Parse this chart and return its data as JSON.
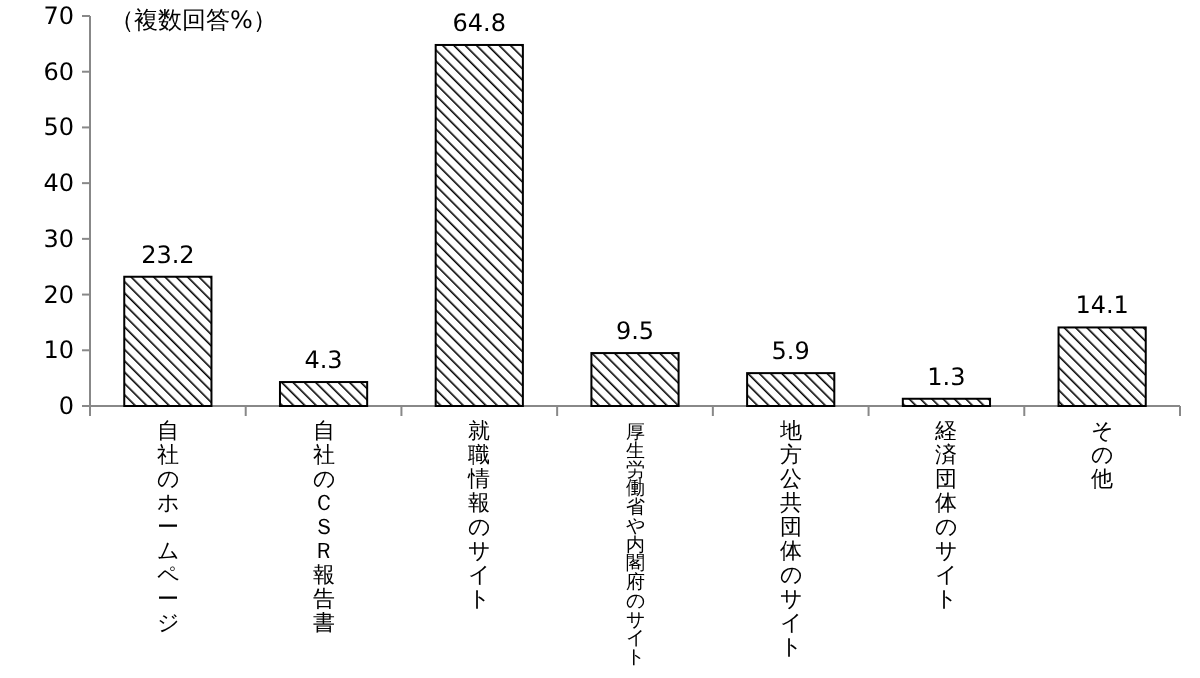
{
  "chart_data": {
    "type": "bar",
    "annotations": [
      "（複数回答%）"
    ],
    "categories": [
      "自社のホームページ",
      "自社のＣＳＲ報告書",
      "就職情報のサイト",
      "厚生労働省や内閣府のサイト",
      "地方公共団体のサイト",
      "経済団体のサイト",
      "その他"
    ],
    "values": [
      23.2,
      4.3,
      64.8,
      9.5,
      5.9,
      1.3,
      14.1
    ],
    "color": "#000000",
    "ylim": [
      0,
      70
    ],
    "yticks": [
      0,
      10,
      20,
      30,
      40,
      50,
      60,
      70
    ],
    "data_labels": true
  }
}
